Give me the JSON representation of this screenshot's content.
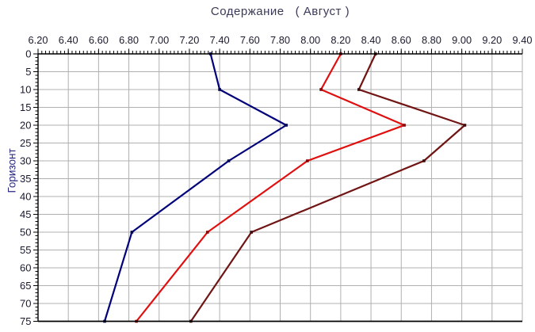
{
  "window": {
    "background": "#ffffff"
  },
  "chart_data": {
    "type": "line",
    "title": "Содержание ( Август )",
    "title_left": "Содержание",
    "title_right": "( Август )",
    "orientation": "depth-profile (y axis is depth, increasing downward; x axis on top)",
    "grid": true,
    "legend": "none",
    "x_axis": {
      "position": "top",
      "min": 6.2,
      "max": 9.4,
      "major_step": 0.2,
      "minor_step": 0.025,
      "tick_labels": [
        "6.20",
        "6.40",
        "6.60",
        "6.80",
        "7.00",
        "7.20",
        "7.40",
        "7.60",
        "7.80",
        "8.00",
        "8.20",
        "8.40",
        "8.60",
        "8.80",
        "9.00",
        "9.20",
        "9.40"
      ]
    },
    "y_axis": {
      "label": "Горизонт",
      "position": "left",
      "min": 0,
      "max": 75,
      "major_step": 5,
      "minor_step": 1,
      "inverted": true,
      "tick_labels": [
        "0",
        "5",
        "10",
        "15",
        "20",
        "25",
        "30",
        "35",
        "40",
        "45",
        "50",
        "55",
        "60",
        "65",
        "70",
        "75"
      ]
    },
    "depths": [
      0,
      10,
      20,
      30,
      50,
      75
    ],
    "series": [
      {
        "name": "profile-navy",
        "color": "#00007b",
        "marker_color": "#000050",
        "values": [
          7.34,
          7.4,
          7.84,
          7.46,
          6.82,
          6.64
        ]
      },
      {
        "name": "profile-red",
        "color": "#e01010",
        "marker_color": "#8b0000",
        "values": [
          8.2,
          8.07,
          8.62,
          7.98,
          7.32,
          6.85
        ]
      },
      {
        "name": "profile-darkred",
        "color": "#701414",
        "marker_color": "#3f0a0a",
        "values": [
          8.43,
          8.32,
          9.02,
          8.75,
          7.61,
          7.21
        ]
      }
    ],
    "colors": {
      "gridline": "#b0b0b0",
      "axis": "#000000",
      "tick_label": "#1a1a2e",
      "title": "#3a3a58",
      "y_axis_title": "#26267e"
    }
  }
}
